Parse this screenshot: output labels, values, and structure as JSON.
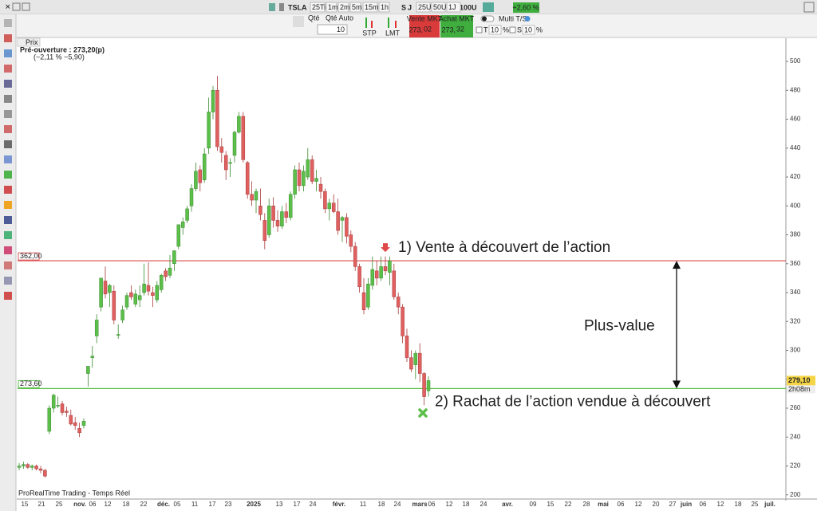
{
  "toolbar": {
    "symbol": "TSLA",
    "intervals": [
      "25Ti",
      "1m",
      "2m",
      "5m",
      "15m",
      "1h"
    ],
    "week": "S",
    "period": "J",
    "units": [
      "25U",
      "50U",
      "1J"
    ],
    "quantity_preset": "100U",
    "change": "+2,60 %"
  },
  "order_panel": {
    "qty_label": "Qté",
    "qty_auto": "Qté Auto",
    "qty": "10",
    "stp": "STP",
    "lmt": "LMT",
    "sell": {
      "label": "Vente MKT",
      "price_int": "273,",
      "price_dec": "02"
    },
    "buy": {
      "label": "Achat MKT",
      "price_int": "273,",
      "price_dec": "32"
    },
    "multi": "Multi T/S",
    "t": {
      "label": "T",
      "value": "10",
      "unit": "%"
    },
    "s": {
      "label": "S",
      "value": "10",
      "unit": "%"
    }
  },
  "chart": {
    "tab": "Prix",
    "preopen": "Pré-ouverture : 273,20(p)",
    "preopen_change": "(−2,11 % −5,90)",
    "ylim": [
      196,
      505
    ],
    "yticks": [
      200,
      220,
      240,
      260,
      280,
      300,
      320,
      340,
      360,
      380,
      400,
      420,
      440,
      460,
      480,
      500
    ],
    "xlabels": [
      "15",
      "21",
      "25",
      "nov.",
      "06",
      "12",
      "18",
      "22",
      "déc.",
      "05",
      "11",
      "17",
      "23",
      "2025",
      "13",
      "17",
      "24",
      "févr.",
      "11",
      "18",
      "24",
      "mars",
      "06",
      "12",
      "18",
      "24",
      "avr.",
      "09",
      "15",
      "22",
      "28",
      "mai",
      "06",
      "12",
      "20",
      "27",
      "juin",
      "06",
      "12",
      "18",
      "25",
      "juil."
    ],
    "candles": [
      [
        219,
        222,
        217,
        220
      ],
      [
        220,
        223,
        218,
        221
      ],
      [
        221,
        222,
        218,
        219
      ],
      [
        219,
        221,
        217,
        220
      ],
      [
        220,
        221,
        217,
        218
      ],
      [
        218,
        220,
        215,
        217
      ],
      [
        217,
        218,
        212,
        213
      ],
      [
        244,
        262,
        242,
        260
      ],
      [
        260,
        270,
        257,
        269
      ],
      [
        262,
        268,
        260,
        262
      ],
      [
        263,
        265,
        255,
        257
      ],
      [
        258,
        261,
        254,
        257
      ],
      [
        255,
        259,
        248,
        249
      ],
      [
        250,
        254,
        245,
        248
      ],
      [
        246,
        250,
        240,
        243
      ],
      [
        248,
        253,
        246,
        251
      ],
      [
        284,
        289,
        275,
        289
      ],
      [
        295,
        303,
        288,
        296
      ],
      [
        310,
        325,
        305,
        321
      ],
      [
        330,
        350,
        327,
        350
      ],
      [
        348,
        358,
        336,
        339
      ],
      [
        340,
        346,
        330,
        345
      ],
      [
        341,
        345,
        318,
        321
      ],
      [
        311,
        318,
        308,
        311
      ],
      [
        321,
        331,
        319,
        328
      ],
      [
        330,
        340,
        328,
        338
      ],
      [
        340,
        345,
        335,
        337
      ],
      [
        332,
        342,
        330,
        339
      ],
      [
        335,
        345,
        330,
        338
      ],
      [
        340,
        360,
        338,
        346
      ],
      [
        345,
        361,
        338,
        341
      ],
      [
        340,
        344,
        330,
        338
      ],
      [
        335,
        348,
        333,
        345
      ],
      [
        342,
        353,
        340,
        352
      ],
      [
        355,
        357,
        348,
        351
      ],
      [
        352,
        366,
        350,
        357
      ],
      [
        360,
        369,
        355,
        369
      ],
      [
        372,
        385,
        370,
        387
      ],
      [
        385,
        392,
        380,
        389
      ],
      [
        390,
        400,
        388,
        398
      ],
      [
        400,
        415,
        396,
        412
      ],
      [
        412,
        430,
        410,
        424
      ],
      [
        425,
        428,
        410,
        416
      ],
      [
        418,
        440,
        416,
        436
      ],
      [
        440,
        475,
        436,
        465
      ],
      [
        465,
        483,
        460,
        480
      ],
      [
        480,
        490,
        438,
        441
      ],
      [
        441,
        447,
        430,
        437
      ],
      [
        435,
        438,
        418,
        425
      ],
      [
        430,
        433,
        420,
        430
      ],
      [
        435,
        452,
        430,
        451
      ],
      [
        451,
        465,
        450,
        462
      ],
      [
        462,
        465,
        430,
        432
      ],
      [
        430,
        431,
        405,
        408
      ],
      [
        408,
        417,
        400,
        404
      ],
      [
        404,
        412,
        395,
        410
      ],
      [
        400,
        412,
        390,
        394
      ],
      [
        390,
        395,
        370,
        376
      ],
      [
        380,
        405,
        378,
        400
      ],
      [
        400,
        406,
        385,
        390
      ],
      [
        390,
        397,
        382,
        386
      ],
      [
        386,
        400,
        384,
        396
      ],
      [
        396,
        402,
        388,
        392
      ],
      [
        392,
        410,
        390,
        408
      ],
      [
        408,
        428,
        405,
        425
      ],
      [
        425,
        430,
        410,
        414
      ],
      [
        414,
        428,
        410,
        424
      ],
      [
        420,
        440,
        418,
        432
      ],
      [
        432,
        435,
        415,
        417
      ],
      [
        417,
        425,
        410,
        419
      ],
      [
        415,
        420,
        405,
        410
      ],
      [
        410,
        412,
        395,
        398
      ],
      [
        398,
        405,
        390,
        402
      ],
      [
        402,
        408,
        395,
        396
      ],
      [
        396,
        405,
        380,
        383
      ],
      [
        390,
        393,
        375,
        392
      ],
      [
        392,
        395,
        374,
        379
      ],
      [
        380,
        383,
        368,
        372
      ],
      [
        372,
        375,
        355,
        358
      ],
      [
        358,
        360,
        340,
        344
      ],
      [
        340,
        350,
        325,
        328
      ],
      [
        330,
        350,
        328,
        346
      ],
      [
        345,
        365,
        342,
        356
      ],
      [
        355,
        362,
        345,
        350
      ],
      [
        350,
        365,
        348,
        358
      ],
      [
        358,
        365,
        352,
        355
      ],
      [
        354,
        365,
        345,
        362
      ],
      [
        355,
        360,
        335,
        337
      ],
      [
        337,
        340,
        325,
        330
      ],
      [
        330,
        332,
        305,
        310
      ],
      [
        310,
        315,
        292,
        295
      ],
      [
        295,
        300,
        285,
        287
      ],
      [
        290,
        300,
        280,
        298
      ],
      [
        298,
        305,
        278,
        284
      ],
      [
        284,
        285,
        262,
        268
      ],
      [
        272,
        282,
        268,
        279.1
      ]
    ],
    "levels": [
      {
        "value": 362,
        "label": "362,00",
        "color": "#e05a5a"
      },
      {
        "value": 273.6,
        "label": "273,60",
        "color": "#5cbf4a"
      }
    ],
    "last_price": {
      "value": 279.1,
      "label": "279,10",
      "timer": "2h08m"
    },
    "annotations": {
      "sell": "1) Vente à découvert de l’action",
      "buy": "2) Rachat de l’action vendue à découvert",
      "gain": "Plus-value"
    },
    "footer": "ProRealTime Trading - Temps Réel"
  }
}
